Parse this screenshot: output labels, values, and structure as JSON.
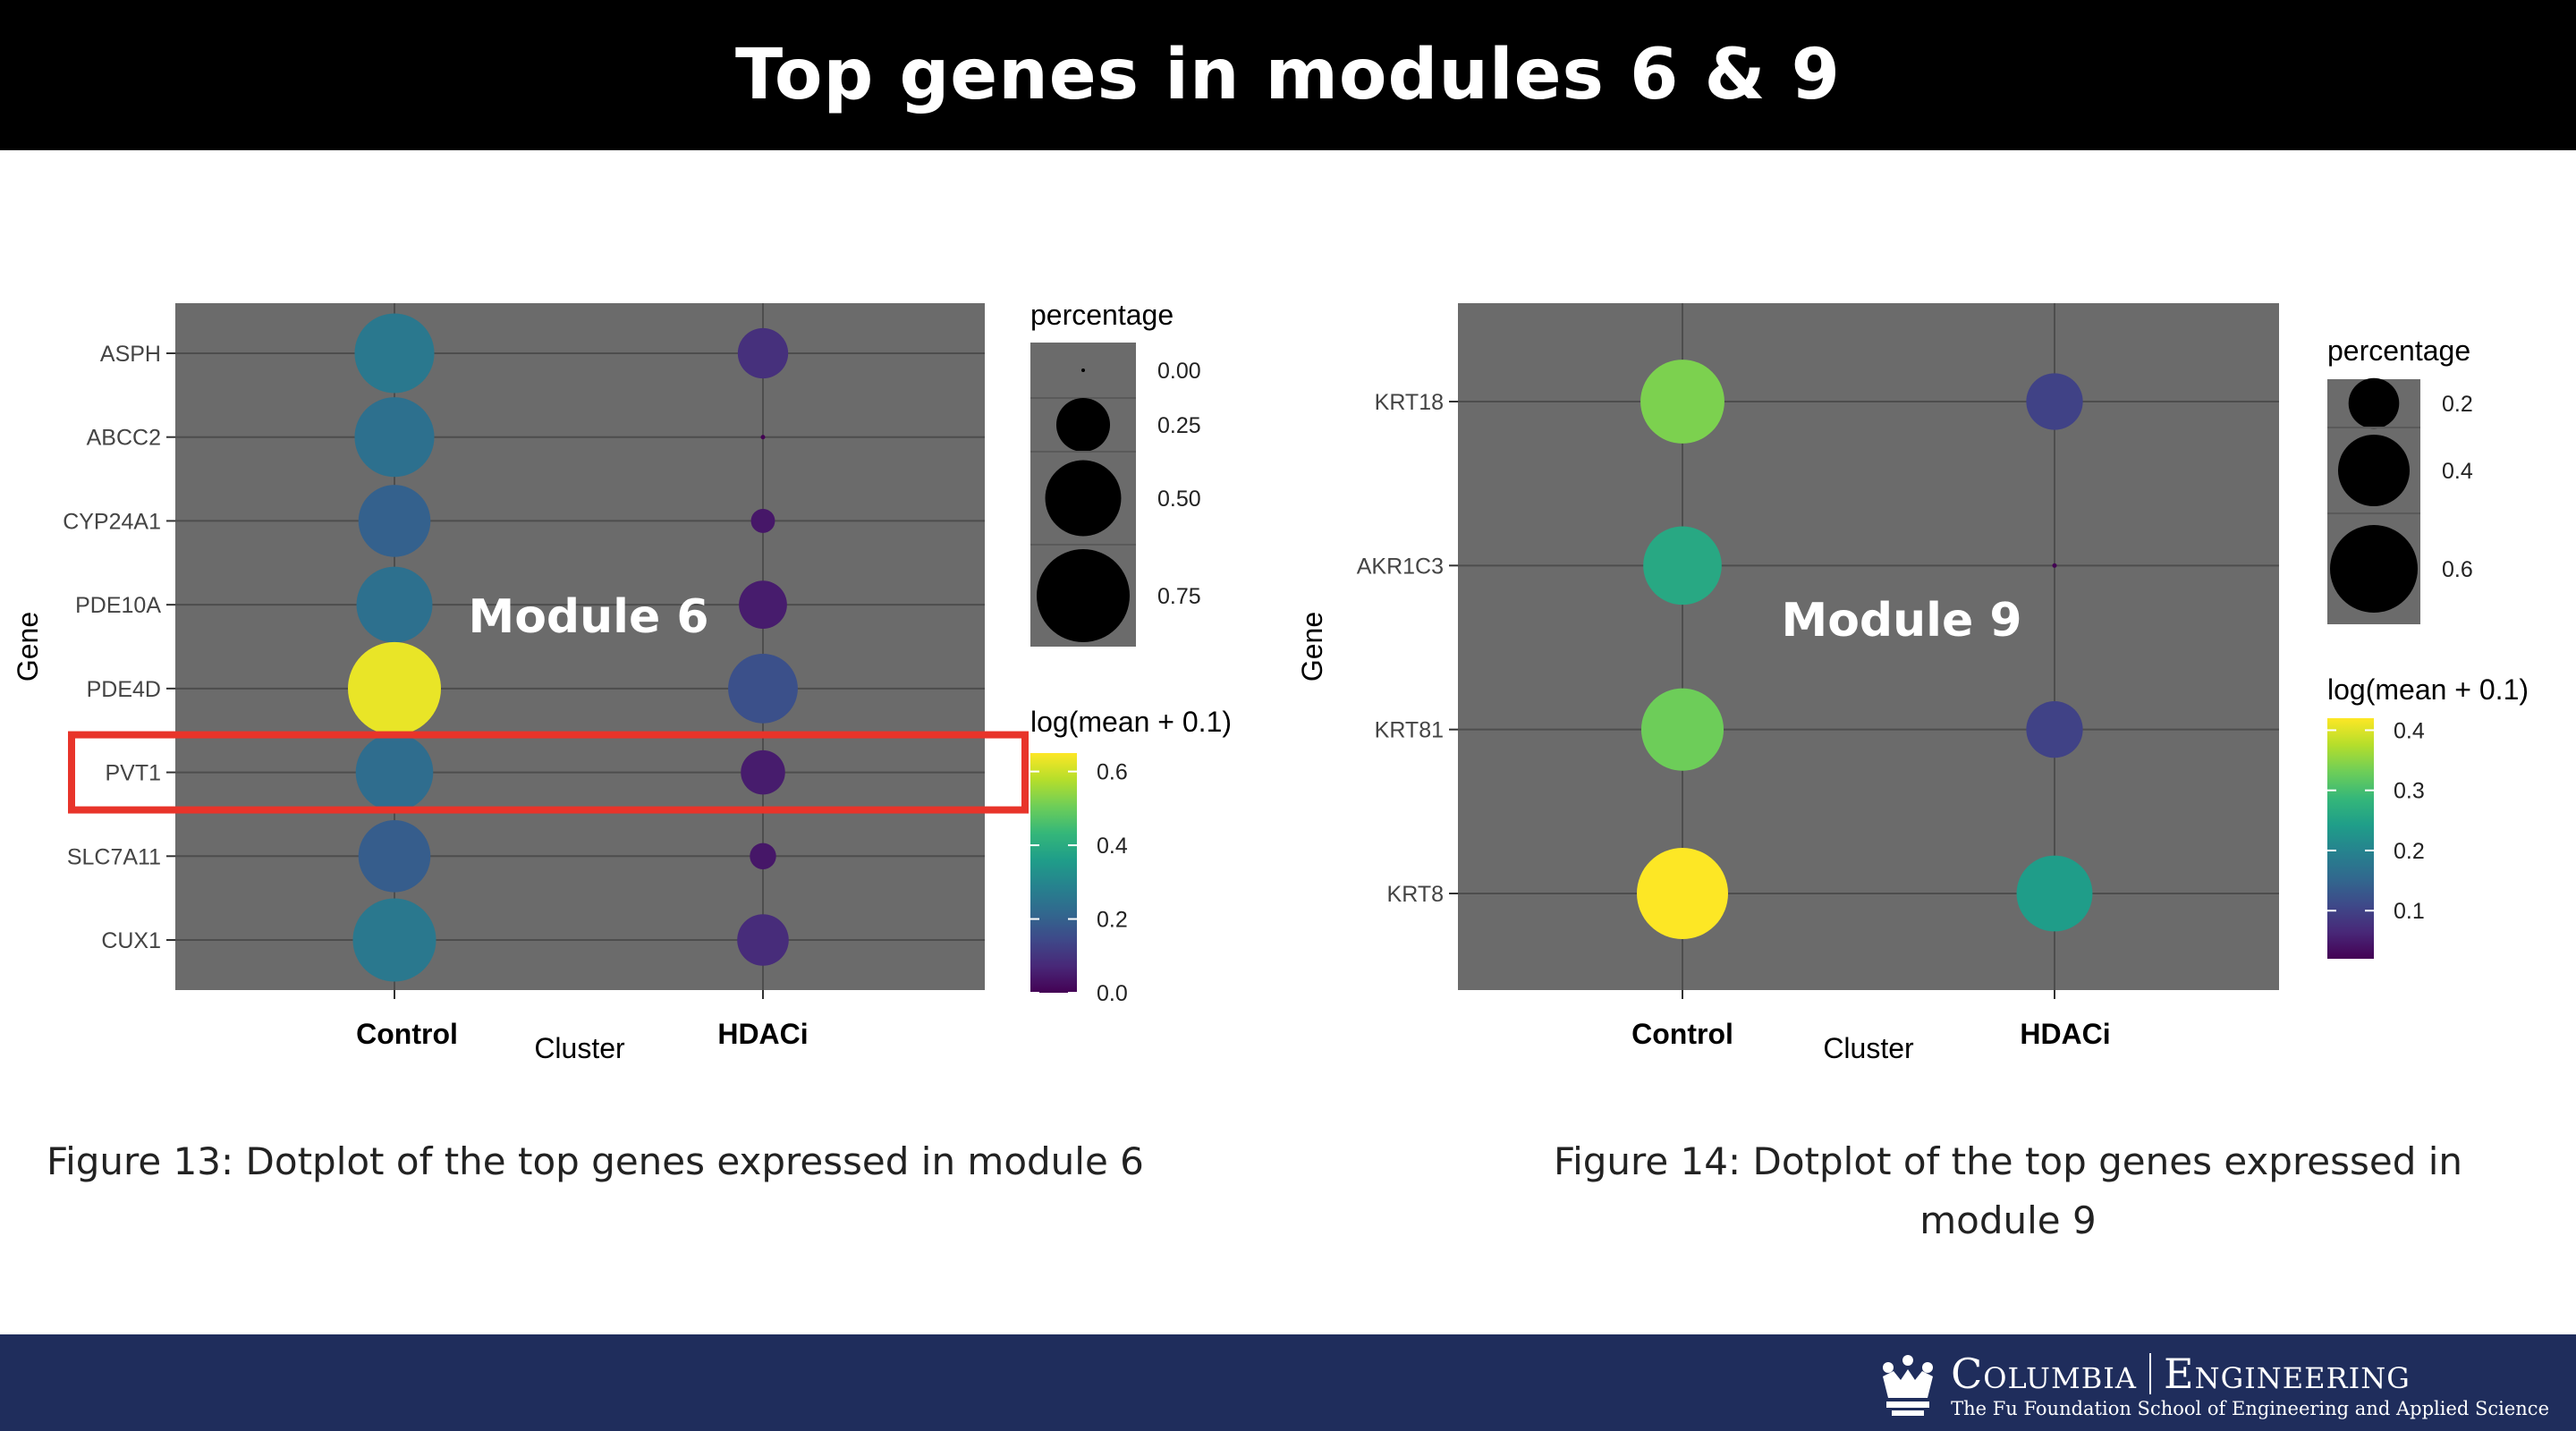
{
  "header": {
    "title": "Top genes in modules 6 & 9"
  },
  "chart_data": [
    {
      "type": "dotplot",
      "overlay_label": "Module 6",
      "xlabel": "Cluster",
      "ylabel": "Gene",
      "categories": [
        "Control",
        "HDACi"
      ],
      "genes": [
        "ASPH",
        "ABCC2",
        "CYP24A1",
        "PDE10A",
        "PDE4D",
        "PVT1",
        "SLC7A11",
        "CUX1"
      ],
      "points": [
        {
          "gene": "ASPH",
          "cluster": "Control",
          "percentage": 0.55,
          "log_mean": 0.26
        },
        {
          "gene": "ABCC2",
          "cluster": "Control",
          "percentage": 0.55,
          "log_mean": 0.24
        },
        {
          "gene": "CYP24A1",
          "cluster": "Control",
          "percentage": 0.45,
          "log_mean": 0.2
        },
        {
          "gene": "PDE10A",
          "cluster": "Control",
          "percentage": 0.5,
          "log_mean": 0.24
        },
        {
          "gene": "PDE4D",
          "cluster": "Control",
          "percentage": 0.75,
          "log_mean": 0.63
        },
        {
          "gene": "PVT1",
          "cluster": "Control",
          "percentage": 0.52,
          "log_mean": 0.23
        },
        {
          "gene": "SLC7A11",
          "cluster": "Control",
          "percentage": 0.45,
          "log_mean": 0.19
        },
        {
          "gene": "CUX1",
          "cluster": "Control",
          "percentage": 0.6,
          "log_mean": 0.26
        },
        {
          "gene": "ASPH",
          "cluster": "HDACi",
          "percentage": 0.22,
          "log_mean": 0.09
        },
        {
          "gene": "ABCC2",
          "cluster": "HDACi",
          "percentage": 0.0,
          "log_mean": 0.0
        },
        {
          "gene": "CYP24A1",
          "cluster": "HDACi",
          "percentage": 0.05,
          "log_mean": 0.04
        },
        {
          "gene": "PDE10A",
          "cluster": "HDACi",
          "percentage": 0.2,
          "log_mean": 0.05
        },
        {
          "gene": "PDE4D",
          "cluster": "HDACi",
          "percentage": 0.42,
          "log_mean": 0.16
        },
        {
          "gene": "PVT1",
          "cluster": "HDACi",
          "percentage": 0.17,
          "log_mean": 0.05
        },
        {
          "gene": "SLC7A11",
          "cluster": "HDACi",
          "percentage": 0.06,
          "log_mean": 0.04
        },
        {
          "gene": "CUX1",
          "cluster": "HDACi",
          "percentage": 0.23,
          "log_mean": 0.08
        }
      ],
      "size_legend": {
        "title": "percentage",
        "values": [
          0.0,
          0.25,
          0.5,
          0.75
        ],
        "labels": [
          "0.00",
          "0.25",
          "0.50",
          "0.75"
        ]
      },
      "color_legend": {
        "title": "log(mean + 0.1)",
        "range": [
          0,
          0.65
        ],
        "ticks": [
          0.0,
          0.2,
          0.4,
          0.6
        ],
        "labels": [
          "0.0",
          "0.2",
          "0.4",
          "0.6"
        ]
      },
      "highlight_gene": "PVT1",
      "highlight_color": "#e8342a"
    },
    {
      "type": "dotplot",
      "overlay_label": "Module 9",
      "xlabel": "Cluster",
      "ylabel": "Gene",
      "categories": [
        "Control",
        "HDACi"
      ],
      "genes": [
        "KRT18",
        "AKR1C3",
        "KRT81",
        "KRT8"
      ],
      "points": [
        {
          "gene": "KRT18",
          "cluster": "Control",
          "percentage": 0.55,
          "log_mean": 0.34
        },
        {
          "gene": "AKR1C3",
          "cluster": "Control",
          "percentage": 0.48,
          "log_mean": 0.26
        },
        {
          "gene": "KRT81",
          "cluster": "Control",
          "percentage": 0.53,
          "log_mean": 0.33
        },
        {
          "gene": "KRT8",
          "cluster": "Control",
          "percentage": 0.65,
          "log_mean": 0.43
        },
        {
          "gene": "KRT18",
          "cluster": "HDACi",
          "percentage": 0.25,
          "log_mean": 0.1
        },
        {
          "gene": "AKR1C3",
          "cluster": "HDACi",
          "percentage": 0.0,
          "log_mean": 0.02
        },
        {
          "gene": "KRT81",
          "cluster": "HDACi",
          "percentage": 0.25,
          "log_mean": 0.1
        },
        {
          "gene": "KRT8",
          "cluster": "HDACi",
          "percentage": 0.45,
          "log_mean": 0.24
        }
      ],
      "size_legend": {
        "title": "percentage",
        "values": [
          0.2,
          0.4,
          0.6
        ],
        "labels": [
          "0.2",
          "0.4",
          "0.6"
        ]
      },
      "color_legend": {
        "title": "log(mean + 0.1)",
        "range": [
          0.02,
          0.42
        ],
        "ticks": [
          0.1,
          0.2,
          0.3,
          0.4
        ],
        "labels": [
          "0.1",
          "0.2",
          "0.3",
          "0.4"
        ]
      }
    }
  ],
  "captions": {
    "fig13": "Figure 13: Dotplot of the top genes expressed in module 6",
    "fig14_line1": "Figure 14: Dotplot of the top genes expressed in",
    "fig14_line2": "module 9"
  },
  "footer": {
    "logo_main_left": "Columbia",
    "logo_main_right": "Engineering",
    "logo_sub": "The Fu Foundation School of Engineering and Applied Science"
  },
  "colors": {
    "panel": "#6b6b6b",
    "title_bar": "#000000",
    "footer": "#1f2d5c"
  }
}
